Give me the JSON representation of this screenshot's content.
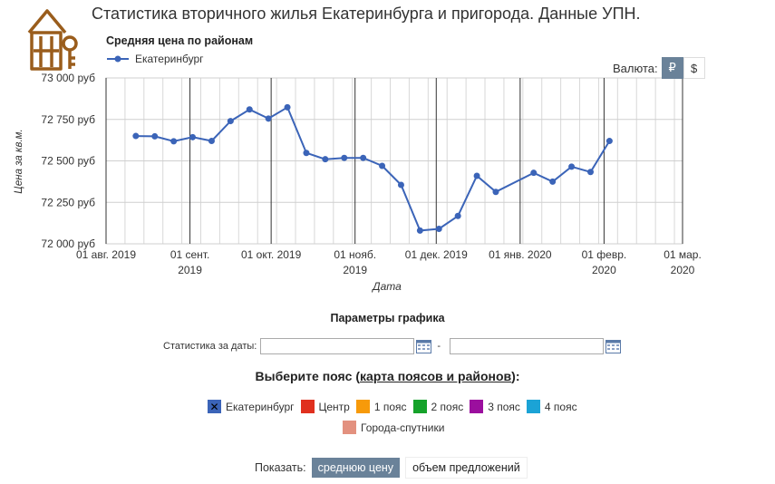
{
  "header": {
    "title": "Статистика вторичного жилья Екатеринбурга и пригорода. Данные УПН."
  },
  "chart_header": {
    "title": "Средняя цена по районам",
    "legend_label": "Екатеринбург"
  },
  "currency": {
    "label": "Валюта:",
    "rub": "₽",
    "usd": "$"
  },
  "chart_data": {
    "type": "line",
    "title": "Средняя цена по районам",
    "xlabel": "Дата",
    "ylabel": "Цена за кв.м.",
    "ylim": [
      72000,
      73000
    ],
    "y_ticks": [
      {
        "value": 72000,
        "label": "72 000 руб"
      },
      {
        "value": 72250,
        "label": "72 250 руб"
      },
      {
        "value": 72500,
        "label": "72 500 руб"
      },
      {
        "value": 72750,
        "label": "72 750 руб"
      },
      {
        "value": 73000,
        "label": "73 000 руб"
      }
    ],
    "xlim": [
      "2019-08-01",
      "2020-03-01"
    ],
    "x_ticks": [
      {
        "date": "2019-08-01",
        "line1": "01 авг. 2019",
        "line2": ""
      },
      {
        "date": "2019-09-01",
        "line1": "01 сент.",
        "line2": "2019"
      },
      {
        "date": "2019-10-01",
        "line1": "01 окт. 2019",
        "line2": ""
      },
      {
        "date": "2019-11-01",
        "line1": "01 нояб.",
        "line2": "2019"
      },
      {
        "date": "2019-12-01",
        "line1": "01 дек. 2019",
        "line2": ""
      },
      {
        "date": "2020-01-01",
        "line1": "01 янв. 2020",
        "line2": ""
      },
      {
        "date": "2020-02-01",
        "line1": "01 февр.",
        "line2": "2020"
      },
      {
        "date": "2020-03-01",
        "line1": "01 мар.",
        "line2": "2020"
      }
    ],
    "grid": true,
    "legend": "top-left",
    "series": [
      {
        "name": "Екатеринбург",
        "color": "#3b64b8",
        "points": [
          {
            "x": "2019-08-12",
            "y": 72650
          },
          {
            "x": "2019-08-19",
            "y": 72648
          },
          {
            "x": "2019-08-26",
            "y": 72618
          },
          {
            "x": "2019-09-02",
            "y": 72643
          },
          {
            "x": "2019-09-09",
            "y": 72620
          },
          {
            "x": "2019-09-16",
            "y": 72740
          },
          {
            "x": "2019-09-23",
            "y": 72810
          },
          {
            "x": "2019-09-30",
            "y": 72755
          },
          {
            "x": "2019-10-07",
            "y": 72823
          },
          {
            "x": "2019-10-14",
            "y": 72548
          },
          {
            "x": "2019-10-21",
            "y": 72510
          },
          {
            "x": "2019-10-28",
            "y": 72518
          },
          {
            "x": "2019-11-04",
            "y": 72518
          },
          {
            "x": "2019-11-11",
            "y": 72470
          },
          {
            "x": "2019-11-18",
            "y": 72355
          },
          {
            "x": "2019-11-25",
            "y": 72080
          },
          {
            "x": "2019-12-02",
            "y": 72090
          },
          {
            "x": "2019-12-09",
            "y": 72168
          },
          {
            "x": "2019-12-16",
            "y": 72410
          },
          {
            "x": "2019-12-23",
            "y": 72313
          },
          {
            "x": "2020-01-06",
            "y": 72428
          },
          {
            "x": "2020-01-13",
            "y": 72375
          },
          {
            "x": "2020-01-20",
            "y": 72465
          },
          {
            "x": "2020-01-27",
            "y": 72433
          },
          {
            "x": "2020-02-03",
            "y": 72620
          }
        ]
      }
    ]
  },
  "params": {
    "title": "Параметры графика",
    "dates_label": "Статистика за даты:",
    "date_from": "",
    "date_to": "",
    "dash": "-"
  },
  "belts": {
    "title_prefix": "Выберите пояс (",
    "title_link": "карта поясов и районов",
    "title_suffix": "):",
    "items": [
      {
        "label": "Екатеринбург",
        "color": "#3b64b8",
        "checked": true
      },
      {
        "label": "Центр",
        "color": "#e0301e"
      },
      {
        "label": "1 пояс",
        "color": "#f79a0a"
      },
      {
        "label": "2 пояс",
        "color": "#15a22a"
      },
      {
        "label": "3 пояс",
        "color": "#9b0f9e"
      },
      {
        "label": "4 пояс",
        "color": "#1ba3d6"
      },
      {
        "label": "Города-спутники",
        "color": "#e3917f"
      }
    ]
  },
  "show": {
    "label": "Показать:",
    "avg_price": "среднюю цену",
    "volume": "объем предложений"
  }
}
